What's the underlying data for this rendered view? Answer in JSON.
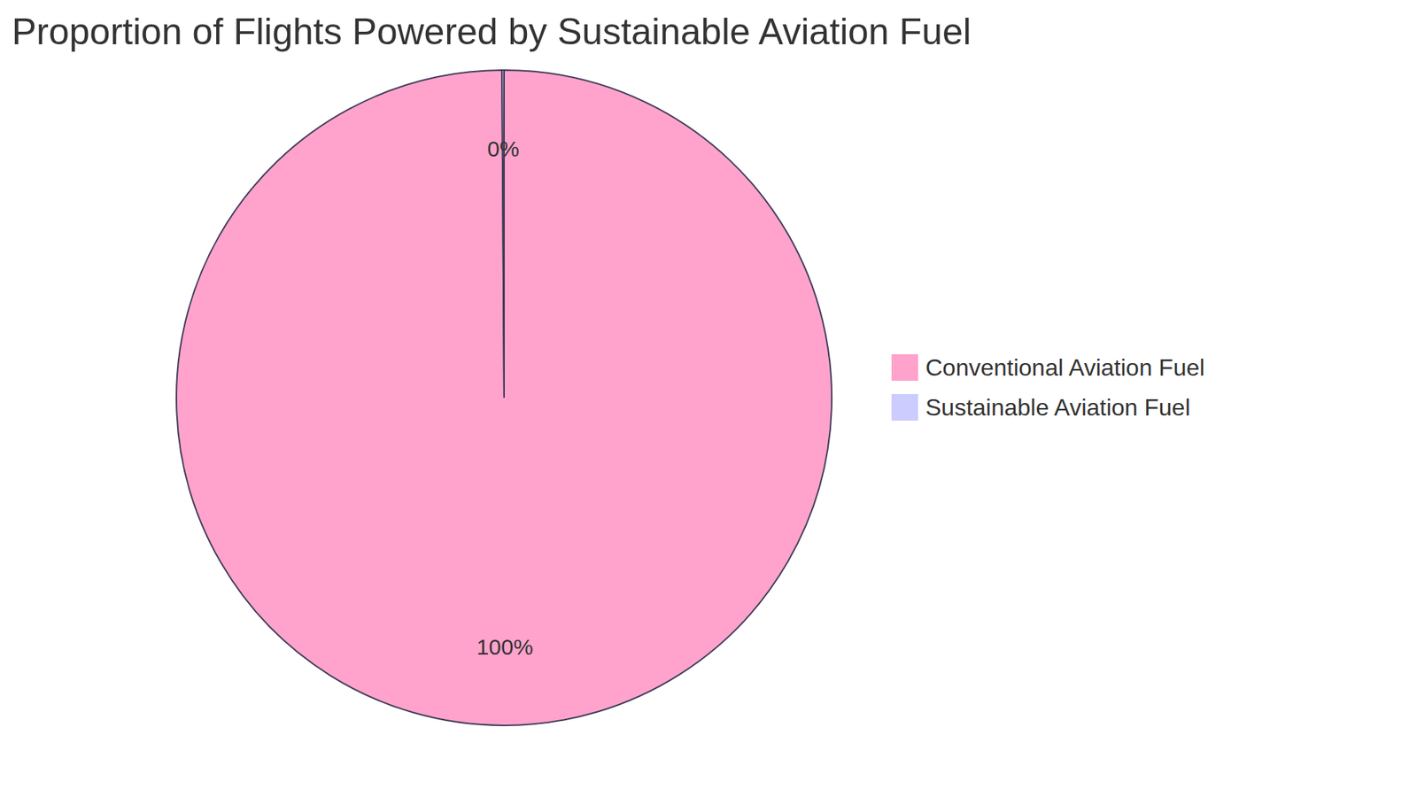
{
  "chart_data": {
    "type": "pie",
    "title": "Proportion of Flights Powered by Sustainable Aviation Fuel",
    "categories": [
      "Conventional Aviation Fuel",
      "Sustainable Aviation Fuel"
    ],
    "values": [
      99.9,
      0.1
    ],
    "value_labels": [
      "100%",
      "0%"
    ],
    "colors": [
      "#ffa3cc",
      "#ccccff"
    ],
    "data_labels": true,
    "legend": "right"
  }
}
